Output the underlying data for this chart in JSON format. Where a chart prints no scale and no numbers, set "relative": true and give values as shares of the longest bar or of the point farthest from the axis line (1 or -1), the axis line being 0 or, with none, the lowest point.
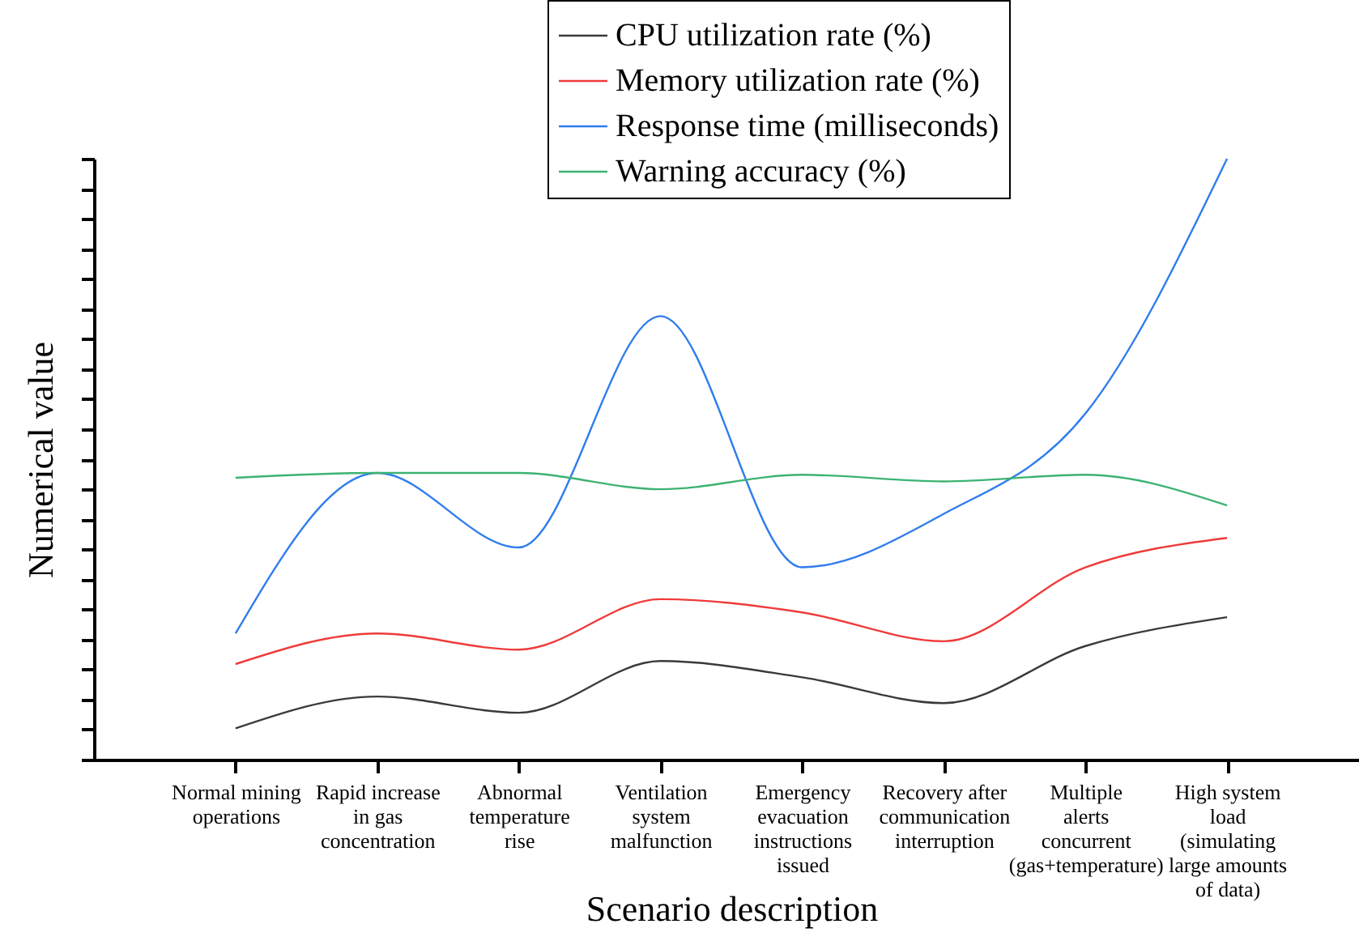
{
  "chart_data": {
    "type": "line",
    "relative": true,
    "xlabel": "Scenario description",
    "ylabel": "Numerical value",
    "categories": [
      "Normal mining operations",
      "Rapid increase in gas concentration",
      "Abnormal temperature rise",
      "Ventilation system malfunction",
      "Emergency evacuation instructions issued",
      "Recovery after communication interruption",
      "Multiple alerts concurrent (gas+temperature)",
      "High system load (simulating large amounts of data)"
    ],
    "series": [
      {
        "name": "CPU utilization rate (%)",
        "color": "#3a3a3a",
        "values": [
          0.052,
          0.105,
          0.078,
          0.164,
          0.137,
          0.094,
          0.189,
          0.237
        ]
      },
      {
        "name": "Memory utilization rate (%)",
        "color": "#ef3b3b",
        "values": [
          0.159,
          0.21,
          0.183,
          0.267,
          0.245,
          0.197,
          0.32,
          0.369
        ]
      },
      {
        "name": "Response time (milliseconds)",
        "color": "#2f7ded",
        "values": [
          0.21,
          0.477,
          0.353,
          0.738,
          0.32,
          0.409,
          0.576,
          1
        ]
      },
      {
        "name": "Warning accuracy (%)",
        "color": "#3cb371",
        "values": [
          0.469,
          0.477,
          0.477,
          0.45,
          0.474,
          0.463,
          0.474,
          0.423
        ]
      }
    ],
    "legend": "top right",
    "grid": false,
    "marker": "none",
    "line_style": "solid"
  }
}
